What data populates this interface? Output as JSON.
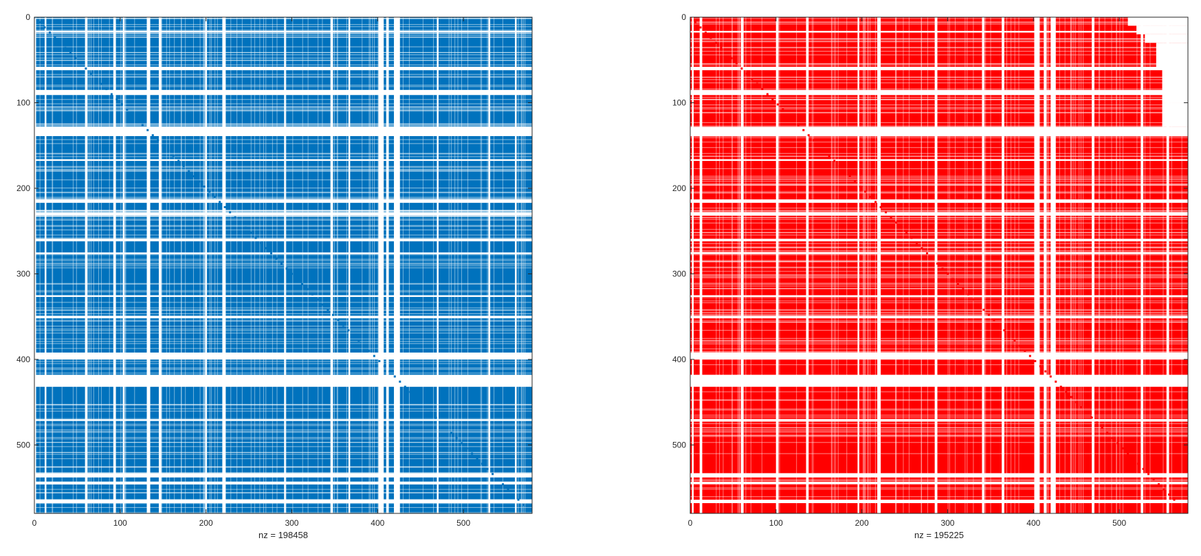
{
  "chart_data": [
    {
      "type": "heatmap",
      "subtype": "sparsity-pattern",
      "color": "#0072BD",
      "xlabel": "nz = 198458",
      "matrix_size": [
        580,
        580
      ],
      "xlim": [
        0,
        580
      ],
      "ylim": [
        0,
        580
      ],
      "y_reversed": true,
      "xticks": [
        0,
        100,
        200,
        300,
        400,
        500
      ],
      "yticks": [
        0,
        100,
        200,
        300,
        400,
        500
      ],
      "grid": false,
      "empty_columns": [
        [
          0,
          2
        ],
        [
          12,
          14
        ],
        [
          59,
          62
        ],
        [
          92,
          95
        ],
        [
          103,
          105
        ],
        [
          131,
          135
        ],
        [
          145,
          148
        ],
        [
          199,
          201
        ],
        [
          219,
          223
        ],
        [
          291,
          293
        ],
        [
          345,
          348
        ],
        [
          366,
          368
        ],
        [
          401,
          407
        ],
        [
          410,
          413
        ],
        [
          419,
          426
        ],
        [
          469,
          471
        ],
        [
          529,
          531
        ],
        [
          560,
          562
        ]
      ],
      "empty_rows": [
        [
          1,
          2
        ],
        [
          16,
          18
        ],
        [
          58,
          62
        ],
        [
          85,
          91
        ],
        [
          128,
          139
        ],
        [
          166,
          168
        ],
        [
          213,
          217
        ],
        [
          228,
          232
        ],
        [
          259,
          262
        ],
        [
          275,
          277
        ],
        [
          325,
          327
        ],
        [
          349,
          352
        ],
        [
          392,
          400
        ],
        [
          418,
          432
        ],
        [
          470,
          472
        ],
        [
          533,
          538
        ],
        [
          543,
          546
        ],
        [
          564,
          568
        ]
      ]
    },
    {
      "type": "heatmap",
      "subtype": "sparsity-pattern",
      "color": "#FF0000",
      "xlabel": "nz = 195225",
      "matrix_size": [
        580,
        580
      ],
      "xlim": [
        0,
        580
      ],
      "ylim": [
        0,
        580
      ],
      "y_reversed": true,
      "xticks": [
        0,
        100,
        200,
        300,
        400,
        500
      ],
      "yticks": [
        0,
        100,
        200,
        300,
        400,
        500
      ],
      "grid": false,
      "upper_block_right_edge": [
        [
          0,
          510
        ],
        [
          10,
          520
        ],
        [
          20,
          530
        ],
        [
          30,
          543
        ],
        [
          60,
          550
        ],
        [
          100,
          550
        ],
        [
          128,
          550
        ],
        [
          138,
          570
        ]
      ],
      "empty_columns": [
        [
          2,
          4
        ],
        [
          11,
          14
        ],
        [
          59,
          62
        ],
        [
          100,
          103
        ],
        [
          135,
          138
        ],
        [
          195,
          197
        ],
        [
          218,
          222
        ],
        [
          285,
          288
        ],
        [
          340,
          343
        ],
        [
          363,
          366
        ],
        [
          401,
          407
        ],
        [
          412,
          415
        ],
        [
          420,
          426
        ],
        [
          468,
          471
        ],
        [
          525,
          528
        ],
        [
          555,
          558
        ]
      ],
      "empty_rows": [
        [
          16,
          18
        ],
        [
          58,
          62
        ],
        [
          85,
          91
        ],
        [
          128,
          139
        ],
        [
          166,
          168
        ],
        [
          213,
          217
        ],
        [
          228,
          232
        ],
        [
          259,
          262
        ],
        [
          275,
          277
        ],
        [
          325,
          327
        ],
        [
          349,
          352
        ],
        [
          392,
          400
        ],
        [
          418,
          432
        ],
        [
          470,
          472
        ],
        [
          533,
          538
        ],
        [
          543,
          546
        ],
        [
          564,
          568
        ]
      ]
    }
  ]
}
